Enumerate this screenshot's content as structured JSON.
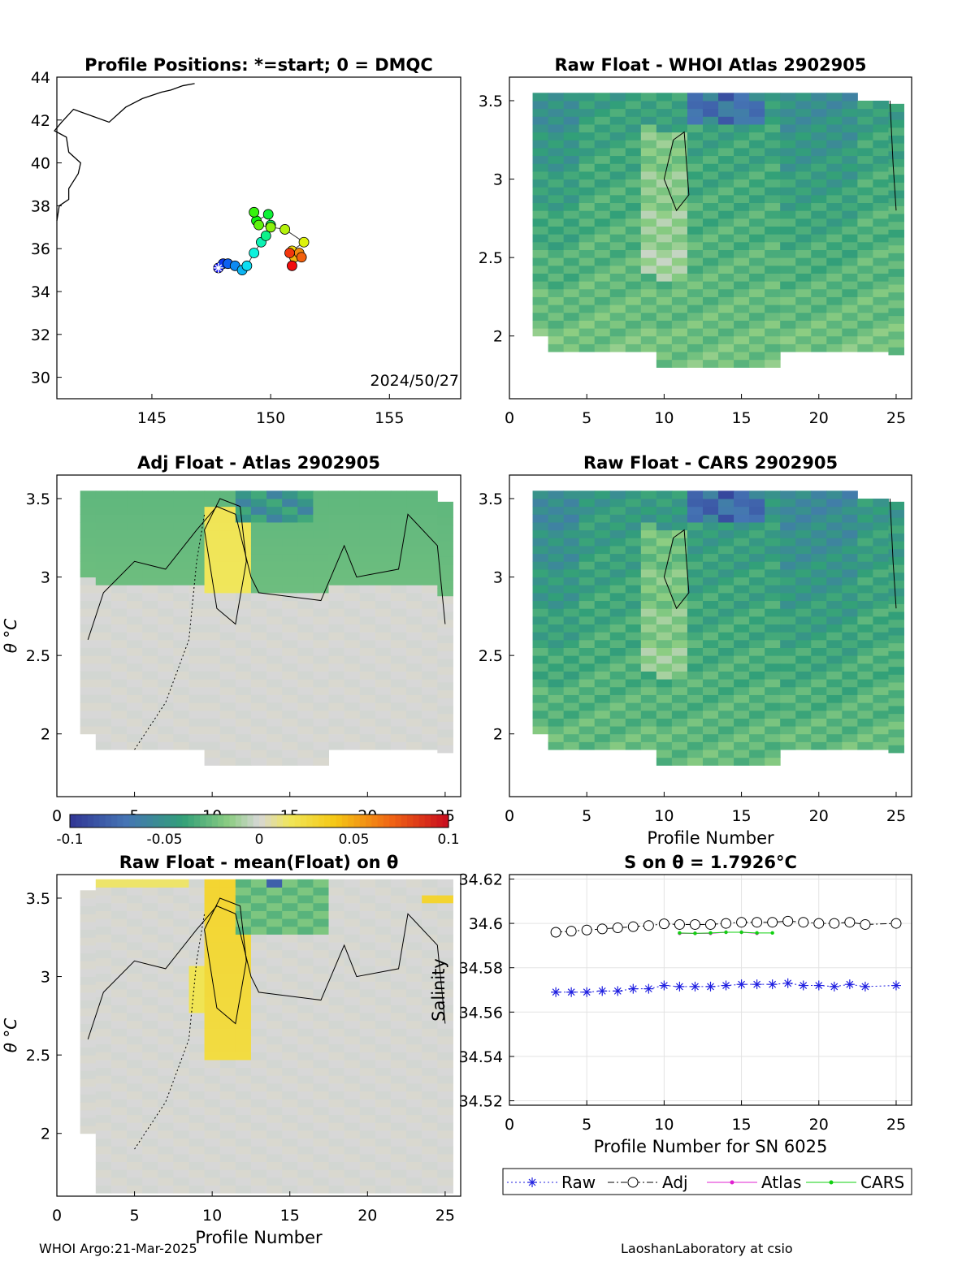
{
  "footer": {
    "left": "WHOI Argo:21-Mar-2025",
    "right": "LaoshanLaboratory at csio"
  },
  "colorbar": {
    "ticks": [
      "-0.1",
      "-0.05",
      "0",
      "0.05",
      "0.1"
    ],
    "range": [
      -0.1,
      0.1
    ]
  },
  "chart_data": [
    {
      "id": "map",
      "type": "scatter",
      "title": "Profile Positions: *=start; 0 = DMQC",
      "xlim": [
        141,
        158
      ],
      "ylim": [
        29,
        44
      ],
      "xticks": [
        "145",
        "150",
        "155"
      ],
      "yticks": [
        "30",
        "32",
        "34",
        "36",
        "38",
        "40",
        "42",
        "44"
      ],
      "annotation": "2024/50/27",
      "lon": [
        147.8,
        148.0,
        148.2,
        148.5,
        148.8,
        149.0,
        149.3,
        149.6,
        149.8,
        150.0,
        149.9,
        149.4,
        149.3,
        149.5,
        150.0,
        150.6,
        151.4,
        150.9,
        151.0,
        151.2,
        151.3,
        150.8,
        150.9
      ],
      "lat": [
        35.1,
        35.3,
        35.3,
        35.2,
        35.0,
        35.2,
        35.8,
        36.3,
        36.6,
        37.1,
        37.6,
        37.3,
        37.7,
        37.1,
        37.0,
        36.9,
        36.3,
        35.9,
        35.6,
        35.8,
        35.6,
        35.8,
        35.2
      ]
    },
    {
      "id": "raw-atlas",
      "type": "heatmap",
      "title": "Raw Float - WHOI Atlas  2902905",
      "xlim": [
        0,
        26
      ],
      "ylim": [
        1.6,
        3.65
      ],
      "xticks": [
        "0",
        "5",
        "10",
        "15",
        "20",
        "25"
      ],
      "yticks": [
        "2",
        "2.5",
        "3",
        "3.5"
      ],
      "ylabel": "",
      "xlabel": "",
      "pattern": "atlas"
    },
    {
      "id": "adj-atlas",
      "type": "heatmap",
      "title": "Adj Float - Atlas  2902905",
      "xlim": [
        0,
        26
      ],
      "ylim": [
        1.6,
        3.65
      ],
      "xticks": [
        "0",
        "5",
        "10",
        "15",
        "20",
        "25"
      ],
      "yticks": [
        "2",
        "2.5",
        "3",
        "3.5"
      ],
      "ylabel": "θ °C",
      "xlabel": "",
      "pattern": "adj"
    },
    {
      "id": "raw-cars",
      "type": "heatmap",
      "title": "Raw Float - CARS  2902905",
      "xlim": [
        0,
        26
      ],
      "ylim": [
        1.6,
        3.65
      ],
      "xticks": [
        "0",
        "5",
        "10",
        "15",
        "20",
        "25"
      ],
      "yticks": [
        "2",
        "2.5",
        "3",
        "3.5"
      ],
      "ylabel": "",
      "xlabel": "Profile Number",
      "pattern": "cars"
    },
    {
      "id": "raw-mean",
      "type": "heatmap",
      "title": "Raw Float - mean(Float) on θ",
      "xlim": [
        0,
        26
      ],
      "ylim": [
        1.6,
        3.65
      ],
      "xticks": [
        "0",
        "5",
        "10",
        "15",
        "20",
        "25"
      ],
      "yticks": [
        "2",
        "2.5",
        "3",
        "3.5"
      ],
      "ylabel": "θ °C",
      "xlabel": "Profile Number",
      "pattern": "mean"
    },
    {
      "id": "salinity",
      "type": "line",
      "title": "S on θ = 1.7926°C",
      "xlim": [
        0,
        26
      ],
      "ylim": [
        34.518,
        34.622
      ],
      "xticks": [
        "0",
        "5",
        "10",
        "15",
        "20",
        "25"
      ],
      "yticks": [
        "34.52",
        "34.54",
        "34.56",
        "34.58",
        "34.6",
        "34.62"
      ],
      "xlabel": "Profile Number for SN 6025",
      "ylabel": "Salinity",
      "series": [
        {
          "name": "Raw",
          "color": "#1f1fe0",
          "marker": "star",
          "x": [
            3,
            4,
            5,
            6,
            7,
            8,
            9,
            10,
            11,
            12,
            13,
            14,
            15,
            16,
            17,
            18,
            19,
            20,
            21,
            22,
            23,
            25
          ],
          "y": [
            34.569,
            34.569,
            34.569,
            34.5695,
            34.5695,
            34.5705,
            34.5705,
            34.572,
            34.5715,
            34.5715,
            34.5715,
            34.572,
            34.5725,
            34.5725,
            34.5725,
            34.573,
            34.572,
            34.572,
            34.5715,
            34.5725,
            34.5715,
            34.572
          ]
        },
        {
          "name": "Adj",
          "color": "#000000",
          "marker": "circle",
          "x": [
            3,
            4,
            5,
            6,
            7,
            8,
            9,
            10,
            11,
            12,
            13,
            14,
            15,
            16,
            17,
            18,
            19,
            20,
            21,
            22,
            23,
            25
          ],
          "y": [
            34.596,
            34.5965,
            34.597,
            34.5975,
            34.598,
            34.5985,
            34.599,
            34.5998,
            34.5995,
            34.5995,
            34.5995,
            34.6,
            34.6005,
            34.6005,
            34.6005,
            34.601,
            34.6005,
            34.6,
            34.6,
            34.6005,
            34.5995,
            34.6
          ]
        },
        {
          "name": "Atlas",
          "color": "#e020d0",
          "marker": "dot",
          "x": [
            11,
            12,
            13,
            14,
            15,
            16
          ],
          "y": [
            34.5955,
            34.5955,
            34.5955,
            34.596,
            34.596,
            34.5955
          ]
        },
        {
          "name": "CARS",
          "color": "#10d010",
          "marker": "dot",
          "x": [
            11,
            12,
            13,
            14,
            15,
            16,
            17
          ],
          "y": [
            34.5957,
            34.5955,
            34.5957,
            34.596,
            34.596,
            34.5957,
            34.5957
          ]
        }
      ]
    }
  ]
}
